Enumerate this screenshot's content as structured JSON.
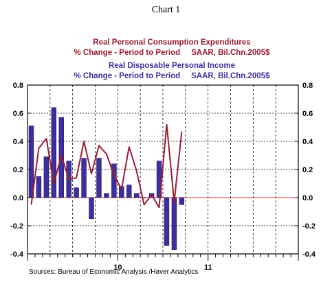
{
  "page": {
    "title": "Chart 1"
  },
  "source": "Sources:  Bureau of Economic Analysis /Haver Analytics",
  "colors": {
    "pce_line": "#9b1b30",
    "dpi_bars": "#3f2f9e",
    "dpi_bar_stroke": "#1a1060"
  },
  "chart_data": {
    "type": "bar",
    "title": "",
    "grid": true,
    "ylim": [
      -0.4,
      0.8
    ],
    "yticks": [
      -0.4,
      -0.2,
      0.0,
      0.2,
      0.4,
      0.6,
      0.8
    ],
    "ytick_labels": [
      "-0.4",
      "-0.2",
      "0.0",
      "0.2",
      "0.4",
      "0.6",
      "0.8"
    ],
    "x_year_labels": [
      "10",
      "11"
    ],
    "x": [
      1,
      2,
      3,
      4,
      5,
      6,
      7,
      8,
      9,
      10,
      11,
      12,
      13,
      14,
      15,
      16,
      17,
      18,
      19,
      20,
      21,
      22,
      23,
      24,
      25,
      26,
      27,
      28,
      29,
      30,
      31,
      32,
      33,
      34,
      35,
      36
    ],
    "series": [
      {
        "name": "Real Disposable Personal Income",
        "subtitle": "% Change - Period to Period     SAAR, Bil.Chn.2005$",
        "kind": "bar",
        "values": [
          0.51,
          0.15,
          0.29,
          0.64,
          0.57,
          0.26,
          0.07,
          0.28,
          -0.15,
          0.28,
          0.03,
          0.24,
          0.08,
          0.09,
          0.03,
          0.0,
          0.03,
          0.26,
          -0.34,
          -0.37,
          -0.05,
          null,
          null,
          null,
          null,
          null,
          null,
          null,
          null,
          null,
          null,
          null,
          null,
          null,
          null,
          null
        ]
      },
      {
        "name": "Real Personal Consumption Expenditures",
        "subtitle": "% Change - Period to Period     SAAR, Bil.Chn.2005$",
        "kind": "line",
        "values": [
          -0.05,
          0.35,
          0.42,
          0.1,
          0.3,
          0.13,
          0.14,
          0.4,
          0.17,
          0.37,
          0.31,
          0.16,
          0.06,
          0.36,
          0.19,
          -0.05,
          0.02,
          -0.07,
          0.52,
          -0.03,
          0.47,
          null,
          null,
          null,
          null,
          null,
          null,
          null,
          null,
          null,
          null,
          null,
          null,
          null,
          null,
          null
        ]
      }
    ]
  }
}
